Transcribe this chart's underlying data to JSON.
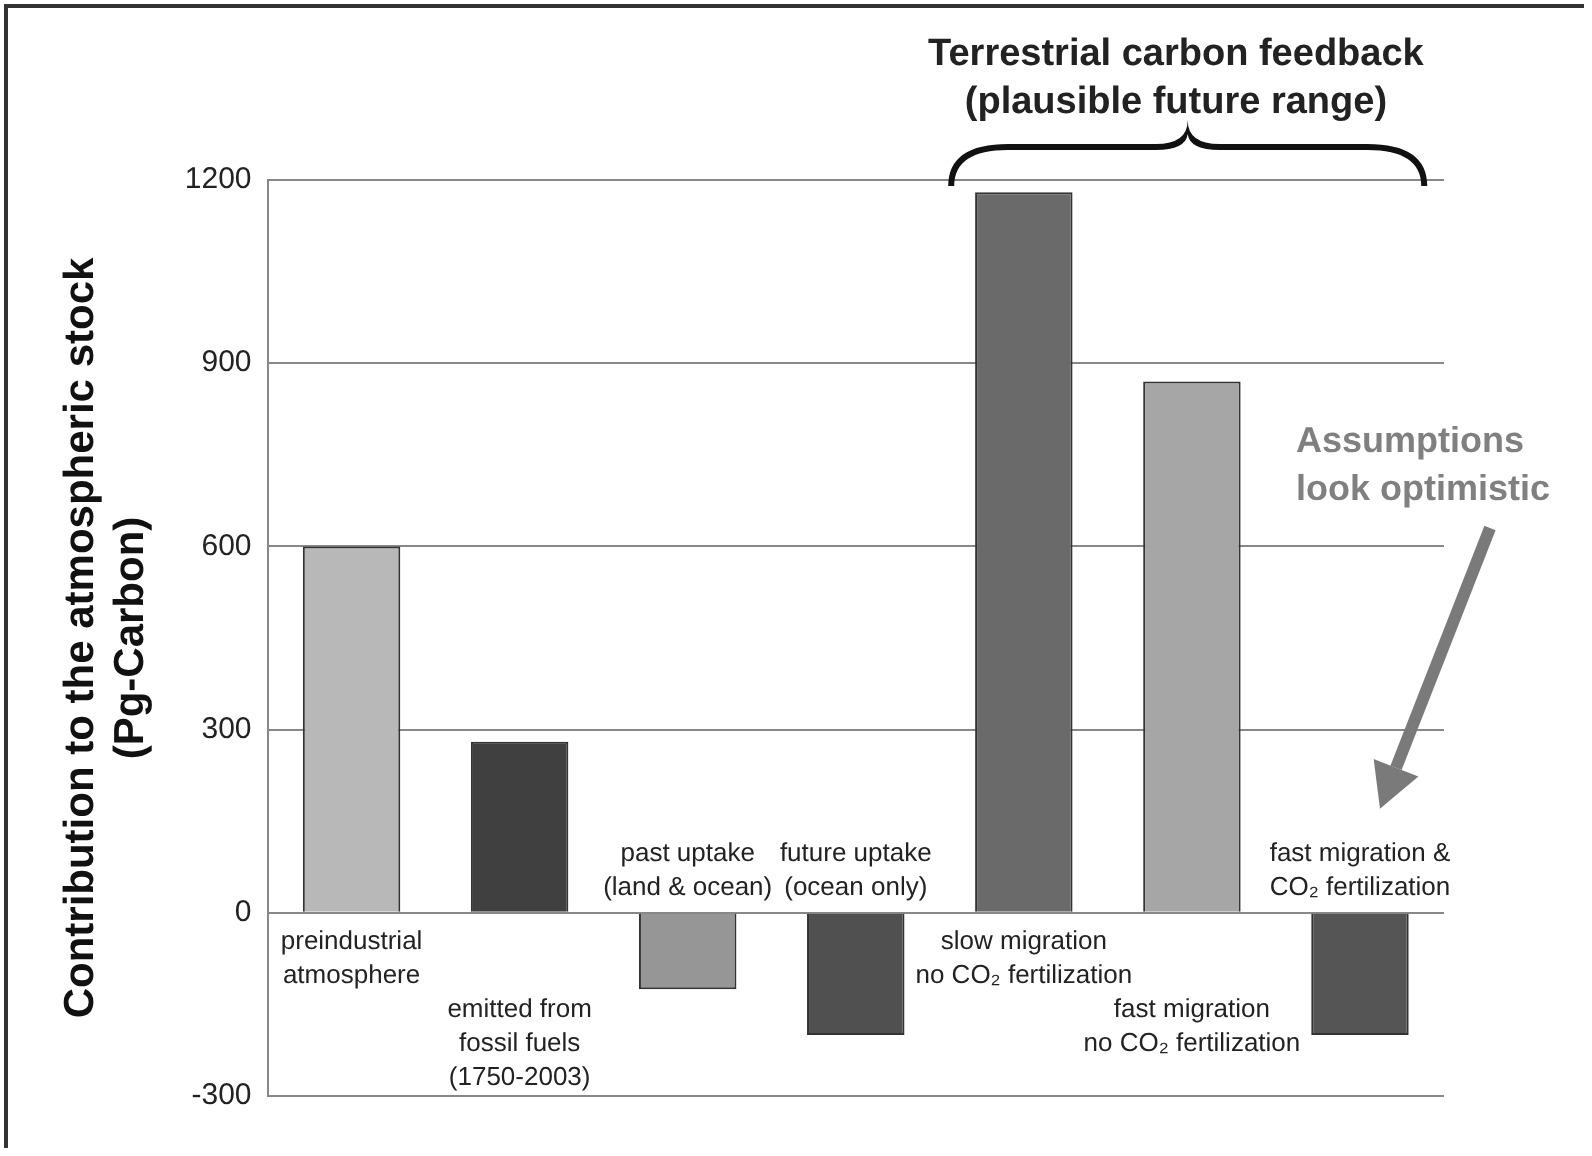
{
  "chart_data": {
    "type": "bar",
    "ylabel": "Contribution to the atmospheric stock\n(Pg-Carbon)",
    "categories": [
      "preindustrial\natmosphere",
      "emitted from\nfossil fuels\n(1750-2003)",
      "past uptake\n(land & ocean)",
      "future uptake\n(ocean only)",
      "slow migration\nno CO₂ fertilization",
      "fast migration\nno CO₂ fertilization",
      "fast migration &\nCO₂ fertilization"
    ],
    "values": [
      600,
      280,
      -125,
      -200,
      1180,
      870,
      -200
    ],
    "colors": [
      "#b8b8b8",
      "#404040",
      "#969696",
      "#505050",
      "#6a6a6a",
      "#a6a6a6",
      "#555555"
    ],
    "ylim": [
      -300,
      1200
    ],
    "yticks": [
      -300,
      0,
      300,
      600,
      900,
      1200
    ],
    "grid": "y",
    "annotations": [
      "Terrestrial carbon feedback\n(plausible future range)",
      "Assumptions\nlook optimistic"
    ]
  }
}
